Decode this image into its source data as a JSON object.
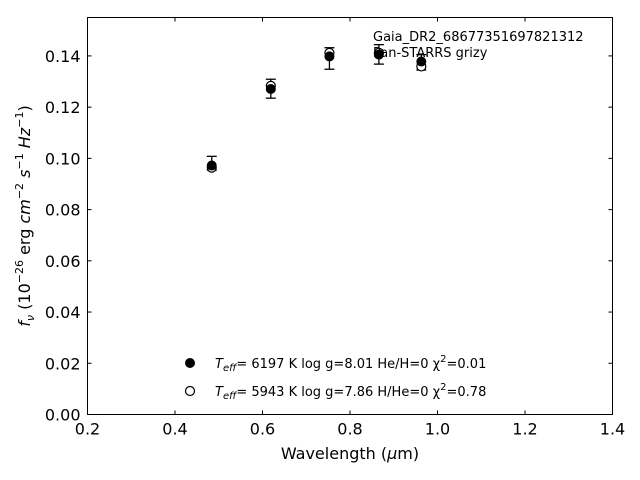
{
  "chart_data": {
    "type": "scatter",
    "title": "",
    "xlabel": "Wavelength (μm)",
    "ylabel": "f_ν (10^-26 erg cm^-2 s^-1 Hz^-1)",
    "xlim": [
      0.2,
      1.4
    ],
    "ylim": [
      0.0,
      0.155
    ],
    "x_ticks": [
      0.2,
      0.4,
      0.6,
      0.8,
      1.0,
      1.2,
      1.4
    ],
    "x_tick_labels": [
      "0.2",
      "0.4",
      "0.6",
      "0.8",
      "1.0",
      "1.2",
      "1.4"
    ],
    "y_ticks": [
      0.0,
      0.02,
      0.04,
      0.06,
      0.08,
      0.1,
      0.12,
      0.14
    ],
    "y_tick_labels": [
      "0.00",
      "0.02",
      "0.04",
      "0.06",
      "0.08",
      "0.10",
      "0.12",
      "0.14"
    ],
    "grid": false,
    "annotations": [
      "Gaia_DR2_686773516978213​12",
      "Pan-STARRS grizy"
    ],
    "observed": {
      "x": [
        0.484,
        0.619,
        0.753,
        0.866,
        0.963
      ],
      "y": [
        0.0981,
        0.1272,
        0.139,
        0.1406,
        0.1375
      ],
      "yerr": [
        0.0027,
        0.0037,
        0.0042,
        0.0038,
        0.003
      ]
    },
    "series": [
      {
        "name": "T_eff= 6197 K log g=8.01 He/H=0 χ²=0.01",
        "marker": "filled-circle",
        "x": [
          0.484,
          0.619,
          0.753,
          0.866,
          0.963
        ],
        "y": [
          0.0972,
          0.1271,
          0.1398,
          0.1405,
          0.1378
        ]
      },
      {
        "name": "T_eff= 5943 K log g=7.86 H/He=0 χ²=0.78",
        "marker": "open-circle",
        "x": [
          0.484,
          0.619,
          0.753,
          0.866,
          0.963
        ],
        "y": [
          0.0964,
          0.1283,
          0.1412,
          0.1412,
          0.1359
        ]
      }
    ],
    "legend_position": "bottom-center"
  },
  "legend": {
    "entries": [
      {
        "teff_prefix": "T",
        "teff_sub": "eff",
        "text": "=  6197 K  log g=8.01  He/H=0  χ",
        "sup": "2",
        "tail": "=0.01"
      },
      {
        "teff_prefix": "T",
        "teff_sub": "eff",
        "text": "=  5943 K  log g=7.86  H/He=0  χ",
        "sup": "2",
        "tail": "=0.78"
      }
    ]
  },
  "colors": {
    "marker": "#000000",
    "axes": "#000000",
    "background": "#ffffff"
  }
}
